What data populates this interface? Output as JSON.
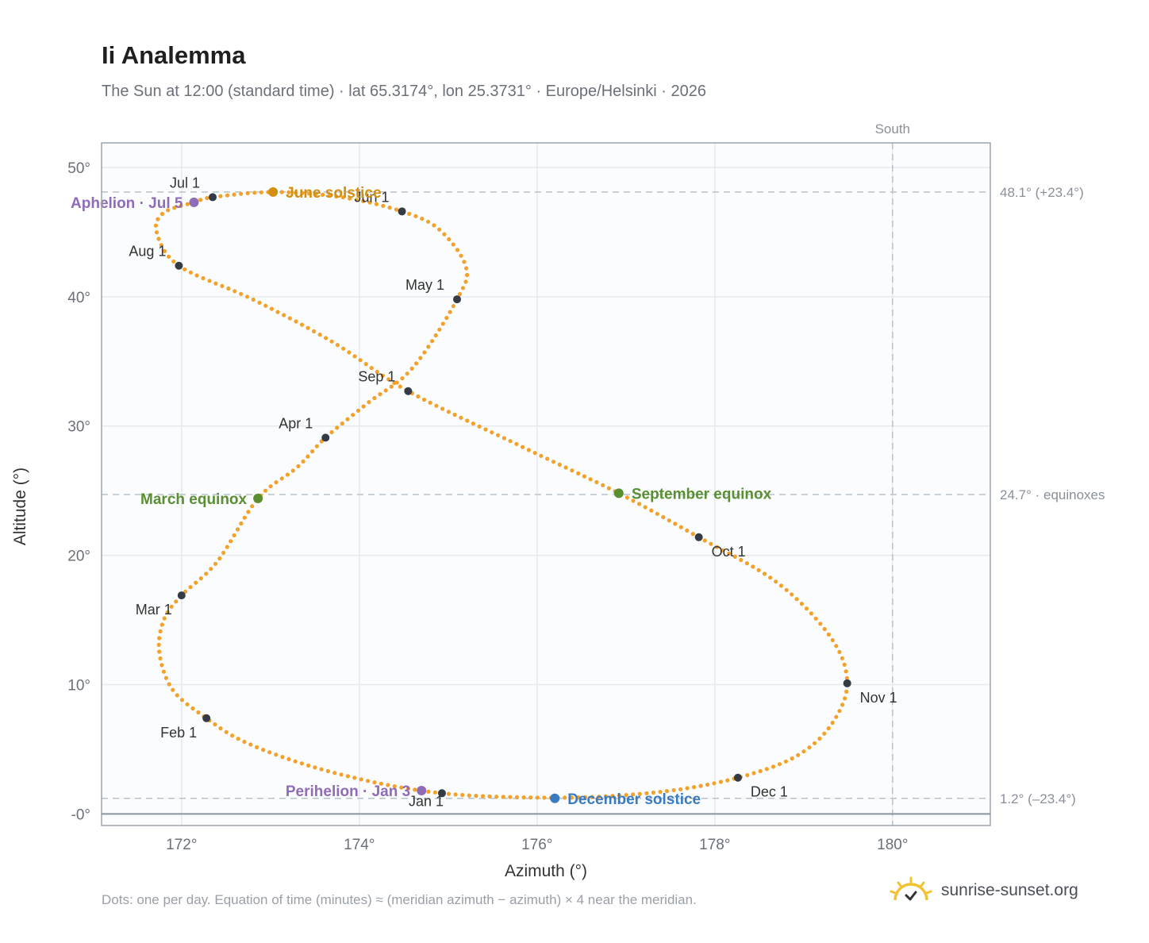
{
  "header": {
    "title": "Ii Analemma",
    "subtitle": "The Sun at 12:00 (standard time) · lat 65.3174°, lon 25.3731° · Europe/Helsinki · 2026"
  },
  "footer": {
    "note": "Dots: one per day. Equation of time (minutes) ≈ (meridian azimuth − azimuth) × 4 near the meridian.",
    "brand": "sunrise-sunset.org"
  },
  "colors": {
    "curve": "#f2a22a",
    "month_marker": "#353b45",
    "solstice_june": "#d38f10",
    "solstice_december": "#3a7bbf",
    "equinox": "#5a8f31",
    "apsis": "#8f6bb8",
    "reference_line": "#b8c2cc",
    "plot_bg": "#fafcfd",
    "grid": "#e6eaee",
    "logo": "#f2c230"
  },
  "chart_data": {
    "type": "scatter",
    "xlabel": "Azimuth (°)",
    "ylabel": "Altitude (°)",
    "xlim": [
      171.1,
      181.1
    ],
    "ylim": [
      -0.9,
      51.9
    ],
    "x_ticks": [
      172,
      174,
      176,
      178,
      180
    ],
    "x_tick_labels": [
      "172°",
      "174°",
      "176°",
      "178°",
      "180°"
    ],
    "y_ticks": [
      0,
      10,
      20,
      30,
      40,
      50
    ],
    "y_tick_labels": [
      "-0°",
      "10°",
      "20°",
      "30°",
      "40°",
      "50°"
    ],
    "grid": true,
    "south_line": {
      "x": 180,
      "label": "South"
    },
    "reference_lines": [
      {
        "y": 48.1,
        "label": "48.1° (+23.4°)"
      },
      {
        "y": 24.7,
        "label": "24.7° · equinoxes"
      },
      {
        "y": 1.2,
        "label": "1.2° (–23.4°)"
      }
    ],
    "horizon_y": 0,
    "daily_points": {
      "description": "one dot per day",
      "curve_knots": [
        {
          "x": 174.93,
          "y": 1.6
        },
        {
          "x": 174.2,
          "y": 2.4
        },
        {
          "x": 173.4,
          "y": 3.8
        },
        {
          "x": 172.7,
          "y": 5.6
        },
        {
          "x": 172.28,
          "y": 7.4
        },
        {
          "x": 171.9,
          "y": 9.6
        },
        {
          "x": 171.75,
          "y": 12.5
        },
        {
          "x": 171.8,
          "y": 15.0
        },
        {
          "x": 172.0,
          "y": 16.9
        },
        {
          "x": 172.4,
          "y": 19.5
        },
        {
          "x": 172.86,
          "y": 24.4
        },
        {
          "x": 173.3,
          "y": 26.8
        },
        {
          "x": 173.62,
          "y": 29.1
        },
        {
          "x": 174.1,
          "y": 31.8
        },
        {
          "x": 174.6,
          "y": 34.5
        },
        {
          "x": 175.1,
          "y": 39.8
        },
        {
          "x": 175.2,
          "y": 42.3
        },
        {
          "x": 174.9,
          "y": 45.2
        },
        {
          "x": 174.48,
          "y": 46.6
        },
        {
          "x": 173.8,
          "y": 47.7
        },
        {
          "x": 173.03,
          "y": 48.1
        },
        {
          "x": 172.35,
          "y": 47.7
        },
        {
          "x": 172.14,
          "y": 47.3
        },
        {
          "x": 171.8,
          "y": 46.5
        },
        {
          "x": 171.72,
          "y": 45.0
        },
        {
          "x": 171.97,
          "y": 42.4
        },
        {
          "x": 172.8,
          "y": 39.8
        },
        {
          "x": 173.7,
          "y": 36.5
        },
        {
          "x": 174.55,
          "y": 32.7
        },
        {
          "x": 175.8,
          "y": 28.5
        },
        {
          "x": 176.92,
          "y": 24.8
        },
        {
          "x": 177.82,
          "y": 21.4
        },
        {
          "x": 178.7,
          "y": 17.9
        },
        {
          "x": 179.3,
          "y": 13.7
        },
        {
          "x": 179.49,
          "y": 10.1
        },
        {
          "x": 179.3,
          "y": 6.8
        },
        {
          "x": 178.9,
          "y": 4.4
        },
        {
          "x": 178.26,
          "y": 2.8
        },
        {
          "x": 177.5,
          "y": 1.8
        },
        {
          "x": 176.6,
          "y": 1.3
        },
        {
          "x": 175.7,
          "y": 1.3
        },
        {
          "x": 174.93,
          "y": 1.6
        }
      ]
    },
    "month_markers": [
      {
        "label": "Jan 1",
        "x": 174.93,
        "y": 1.6,
        "anchor": "bottom"
      },
      {
        "label": "Feb 1",
        "x": 172.28,
        "y": 7.4,
        "anchor": "bottom-left"
      },
      {
        "label": "Mar 1",
        "x": 172.0,
        "y": 16.9,
        "anchor": "bottom-left"
      },
      {
        "label": "Apr 1",
        "x": 173.62,
        "y": 29.1,
        "anchor": "top-left"
      },
      {
        "label": "May 1",
        "x": 175.1,
        "y": 39.8,
        "anchor": "top-left"
      },
      {
        "label": "Jun 1",
        "x": 174.48,
        "y": 46.6,
        "anchor": "top-left"
      },
      {
        "label": "Jul 1",
        "x": 172.35,
        "y": 47.7,
        "anchor": "top-left"
      },
      {
        "label": "Aug 1",
        "x": 171.97,
        "y": 42.4,
        "anchor": "top-left"
      },
      {
        "label": "Sep 1",
        "x": 174.55,
        "y": 32.7,
        "anchor": "top-left"
      },
      {
        "label": "Oct 1",
        "x": 177.82,
        "y": 21.4,
        "anchor": "bottom-right"
      },
      {
        "label": "Nov 1",
        "x": 179.49,
        "y": 10.1,
        "anchor": "bottom-right"
      },
      {
        "label": "Dec 1",
        "x": 178.26,
        "y": 2.8,
        "anchor": "bottom-right"
      }
    ],
    "events": [
      {
        "label": "June solstice",
        "x": 173.03,
        "y": 48.1,
        "color_key": "solstice_june",
        "anchor": "right"
      },
      {
        "label": "December solstice",
        "x": 176.2,
        "y": 1.2,
        "color_key": "solstice_december",
        "anchor": "right"
      },
      {
        "label": "March equinox",
        "x": 172.86,
        "y": 24.4,
        "color_key": "equinox",
        "anchor": "left"
      },
      {
        "label": "September equinox",
        "x": 176.92,
        "y": 24.8,
        "color_key": "equinox",
        "anchor": "right"
      },
      {
        "label": "Aphelion · Jul 5",
        "x": 172.14,
        "y": 47.3,
        "color_key": "apsis",
        "anchor": "left"
      },
      {
        "label": "Perihelion · Jan 3",
        "x": 174.7,
        "y": 1.8,
        "color_key": "apsis",
        "anchor": "left"
      }
    ]
  }
}
